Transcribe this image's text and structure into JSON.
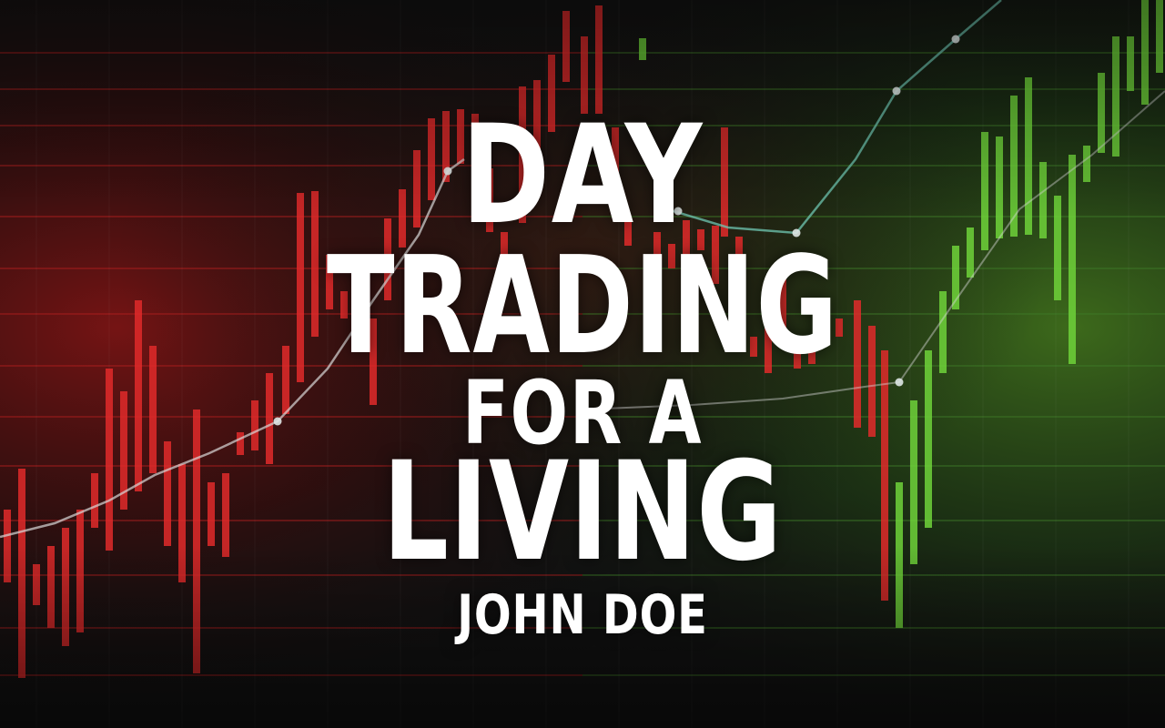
{
  "cover": {
    "title_line_1": "DAY",
    "title_line_2": "TRADING",
    "title_line_3": "FOR A",
    "title_line_4": "LIVING",
    "author": "JOHN DOE"
  },
  "colors": {
    "text": "#ffffff",
    "bear_candles": "#e02a2a",
    "bull_candles": "#6fd23a",
    "trend_line": "#d8d8d8",
    "grid_red": "#b02020",
    "grid_green": "#3f7a28",
    "background": "#101010"
  },
  "background_art": {
    "description": "stock market candlestick chart"
  }
}
